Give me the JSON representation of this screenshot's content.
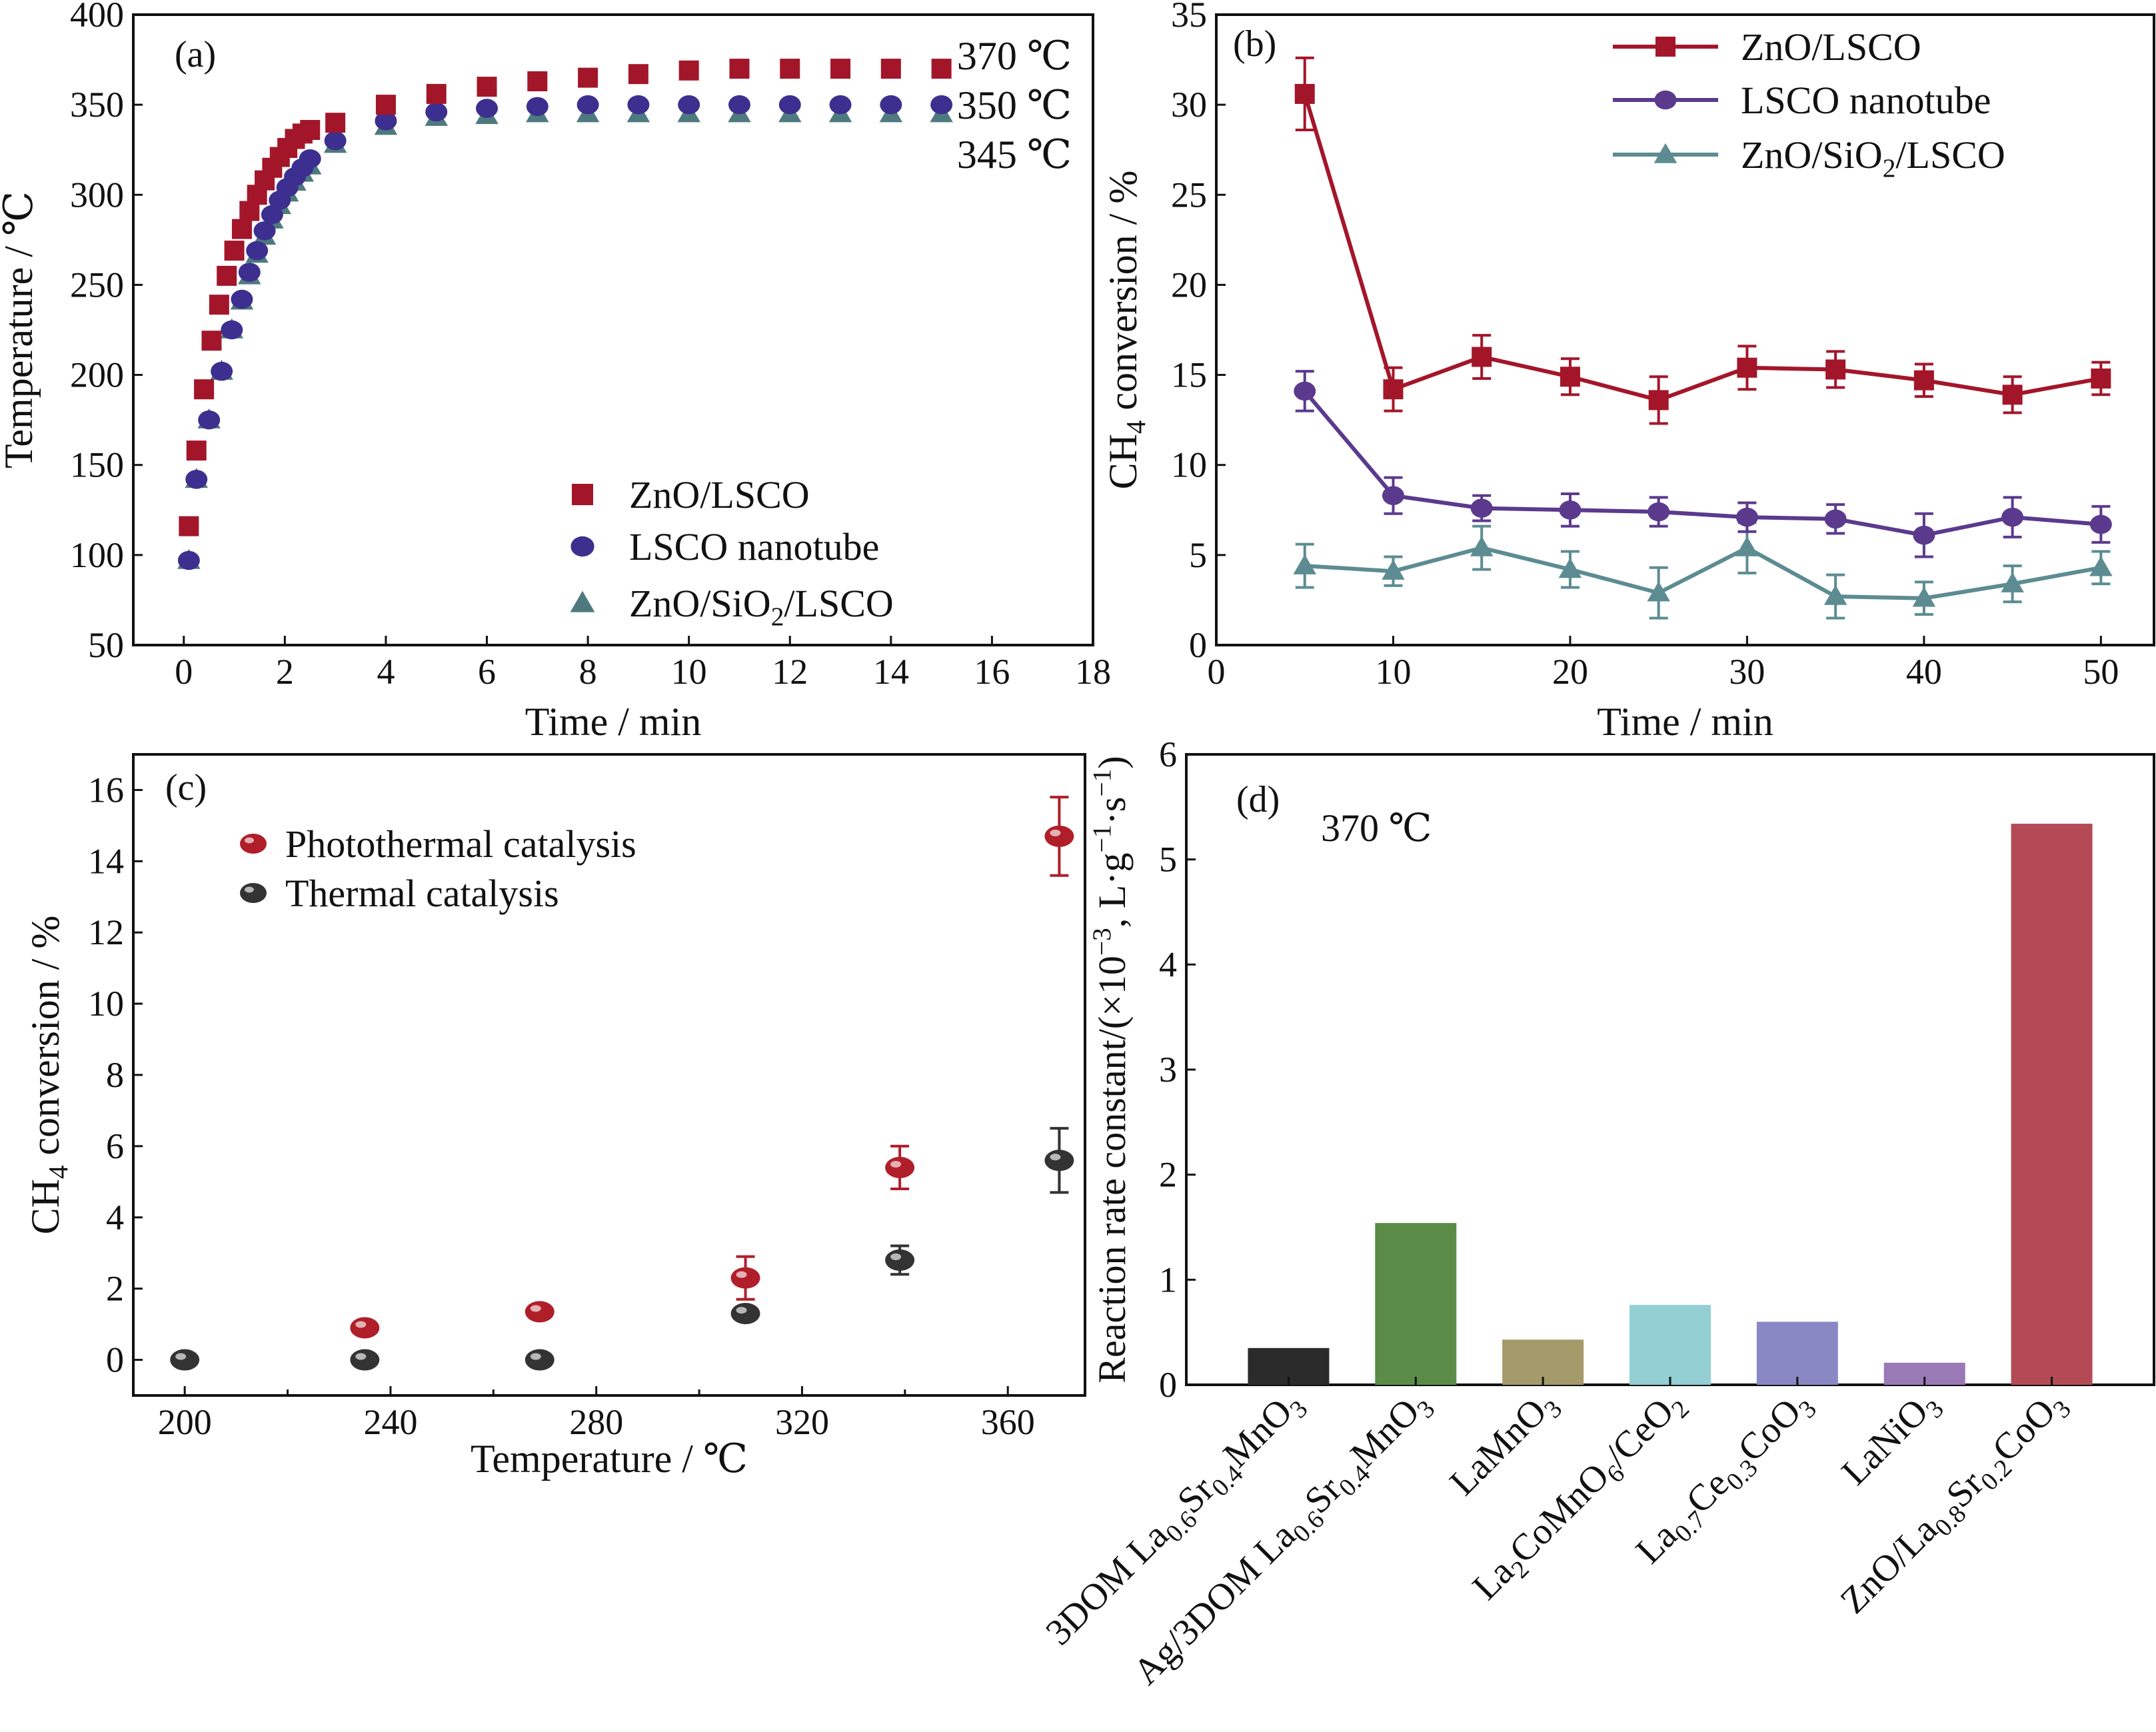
{
  "chart_data": [
    {
      "panel": "(a)",
      "type": "scatter",
      "xlabel": "Time / min",
      "ylabel": "Temperature / ℃",
      "xlim": [
        -1,
        18
      ],
      "ylim": [
        50,
        400
      ],
      "xticks": [
        0,
        2,
        4,
        6,
        8,
        10,
        12,
        14,
        16,
        18
      ],
      "yticks": [
        50,
        100,
        150,
        200,
        250,
        300,
        350,
        400
      ],
      "legend_position": "lower-right",
      "end_labels": [
        "370 ℃",
        "350 ℃",
        "345 ℃"
      ],
      "series": [
        {
          "name": "ZnO/LSCO",
          "marker": "square",
          "color": "#a3162a",
          "end_label_color": "#b01e2a",
          "x": [
            0.1,
            0.25,
            0.4,
            0.55,
            0.7,
            0.85,
            1.0,
            1.15,
            1.3,
            1.45,
            1.6,
            1.75,
            1.9,
            2.05,
            2.2,
            2.35,
            2.5,
            3,
            4,
            5,
            6,
            7,
            8,
            9,
            10,
            11,
            12,
            13,
            14,
            15
          ],
          "y": [
            116,
            158,
            192,
            219,
            239,
            255,
            269,
            281,
            291,
            300,
            308,
            315,
            321,
            326,
            331,
            334,
            336,
            340,
            350,
            356,
            360,
            363,
            365,
            367,
            369,
            370,
            370,
            370,
            370,
            370
          ]
        },
        {
          "name": "LSCO nanotube",
          "marker": "circle",
          "color": "#3d2f8f",
          "end_label_color": "#2e2e8f",
          "x": [
            0.1,
            0.25,
            0.5,
            0.75,
            0.95,
            1.15,
            1.3,
            1.45,
            1.6,
            1.75,
            1.9,
            2.05,
            2.2,
            2.35,
            2.5,
            3,
            4,
            5,
            6,
            7,
            8,
            9,
            10,
            11,
            12,
            13,
            14,
            15
          ],
          "y": [
            97,
            142,
            175,
            202,
            225,
            242,
            257,
            269,
            280,
            289,
            297,
            304,
            310,
            315,
            320,
            330,
            341,
            346,
            348,
            349,
            350,
            350,
            350,
            350,
            350,
            350,
            350,
            350
          ]
        },
        {
          "name": "ZnO/SiO₂/LSCO",
          "marker": "triangle",
          "color": "#4e7a7f",
          "end_label_color": "#4e7a7f",
          "x": [
            0.1,
            0.25,
            0.5,
            0.75,
            0.95,
            1.15,
            1.3,
            1.45,
            1.6,
            1.75,
            1.9,
            2.05,
            2.2,
            2.35,
            2.5,
            3,
            4,
            5,
            6,
            7,
            8,
            9,
            10,
            11,
            12,
            13,
            14,
            15
          ],
          "y": [
            97,
            142,
            175,
            202,
            225,
            241,
            255,
            267,
            277,
            286,
            294,
            301,
            307,
            312,
            316,
            328,
            338,
            343,
            344,
            345,
            345,
            345,
            345,
            345,
            345,
            345,
            345,
            345
          ]
        }
      ]
    },
    {
      "panel": "(b)",
      "type": "line",
      "xlabel": "Time / min",
      "ylabel": "CH₄ conversion / %",
      "xlim": [
        0,
        53
      ],
      "ylim": [
        0,
        35
      ],
      "xticks": [
        0,
        10,
        20,
        30,
        40,
        50
      ],
      "yticks": [
        0,
        5,
        10,
        15,
        20,
        25,
        30,
        35
      ],
      "legend_position": "top-right",
      "x": [
        5,
        10,
        15,
        20,
        25,
        30,
        35,
        40,
        45,
        50
      ],
      "series": [
        {
          "name": "ZnO/LSCO",
          "marker": "square",
          "color": "#a3162a",
          "values": [
            30.6,
            14.2,
            16.0,
            14.9,
            13.6,
            15.4,
            15.3,
            14.7,
            13.9,
            14.8
          ],
          "errors": [
            2.0,
            1.2,
            1.2,
            1.0,
            1.3,
            1.2,
            1.0,
            0.9,
            1.0,
            0.9
          ]
        },
        {
          "name": "LSCO nanotube",
          "marker": "circle",
          "color": "#5b3a8e",
          "values": [
            14.1,
            8.3,
            7.6,
            7.5,
            7.4,
            7.1,
            7.0,
            6.1,
            7.1,
            6.7
          ],
          "errors": [
            1.1,
            1.0,
            0.7,
            0.9,
            0.8,
            0.8,
            0.8,
            1.2,
            1.1,
            1.0
          ]
        },
        {
          "name": "ZnO/SiO₂/LSCO",
          "marker": "triangle",
          "color": "#5c8c92",
          "values": [
            4.4,
            4.1,
            5.4,
            4.2,
            2.9,
            5.4,
            2.7,
            2.6,
            3.4,
            4.3
          ],
          "errors": [
            1.2,
            0.8,
            1.2,
            1.0,
            1.4,
            1.4,
            1.2,
            0.9,
            1.0,
            0.9
          ]
        }
      ]
    },
    {
      "panel": "(c)",
      "type": "scatter",
      "xlabel": "Temperature / ℃",
      "ylabel": "CH₄ conversion / %",
      "xlim": [
        190,
        375
      ],
      "ylim": [
        -1,
        17
      ],
      "xticks": [
        200,
        240,
        280,
        320,
        360
      ],
      "yticks": [
        0,
        2,
        4,
        6,
        8,
        10,
        12,
        14,
        16
      ],
      "legend_position": "top-left",
      "series": [
        {
          "name": "Photothermal catalysis",
          "color": "#b01e2a",
          "x": [
            235,
            269,
            309,
            339,
            370
          ],
          "values": [
            0.9,
            1.35,
            2.3,
            5.4,
            14.7
          ],
          "errors": [
            0,
            0,
            0.6,
            0.6,
            1.1
          ]
        },
        {
          "name": "Thermal catalysis",
          "color": "#333333",
          "x": [
            200,
            235,
            269,
            309,
            339,
            370
          ],
          "values": [
            0.0,
            0.0,
            0.0,
            1.3,
            2.8,
            5.6
          ],
          "errors": [
            0,
            0,
            0,
            0,
            0.4,
            0.9
          ]
        }
      ]
    },
    {
      "panel": "(d)",
      "type": "bar",
      "annotation": "370 ℃",
      "ylabel": "Reaction rate constant/(×10⁻³, L·g⁻¹·s⁻¹)",
      "ylim": [
        0,
        6
      ],
      "yticks": [
        0,
        1,
        2,
        3,
        4,
        5,
        6
      ],
      "categories": [
        "3DOM La₀.₆Sr₀.₄MnO₃",
        "Ag/3DOM La₀.₆Sr₀.₄MnO₃",
        "LaMnO₃",
        "La₂CoMnO₆/CeO₂",
        "La₀.₇Ce₀.₃CoO₃",
        "LaNiO₃",
        "ZnO/La₀.₈Sr₀.₂CoO₃"
      ],
      "values": [
        0.35,
        1.54,
        0.43,
        0.76,
        0.6,
        0.21,
        5.34
      ],
      "colors": [
        "#2b2b2b",
        "#5a8c48",
        "#a49a6a",
        "#93cfd3",
        "#8a88c4",
        "#9a79b7",
        "#b34a55"
      ]
    }
  ]
}
